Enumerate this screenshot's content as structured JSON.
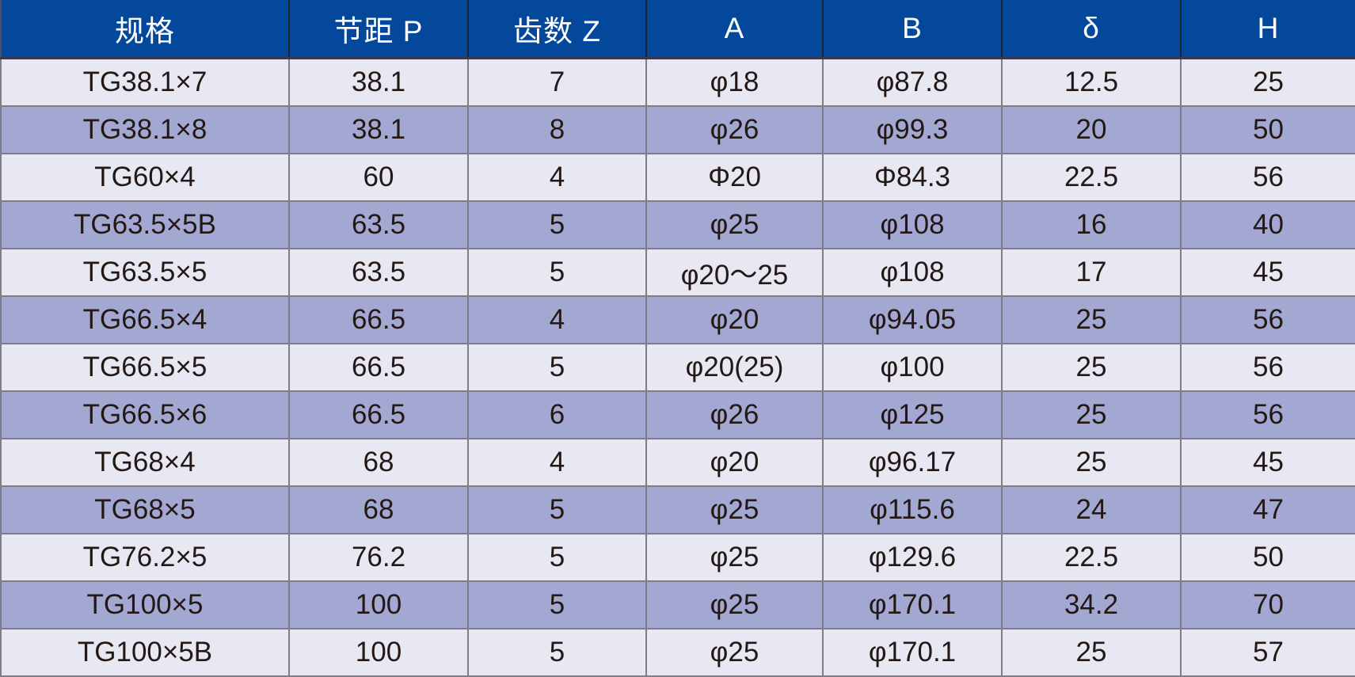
{
  "chart_data": {
    "type": "table",
    "columns": [
      "规格",
      "节距 P",
      "齿数 Z",
      "A",
      "B",
      "δ",
      "H"
    ],
    "rows": [
      [
        "TG38.1×7",
        "38.1",
        "7",
        "φ18",
        "φ87.8",
        "12.5",
        "25"
      ],
      [
        "TG38.1×8",
        "38.1",
        "8",
        "φ26",
        "φ99.3",
        "20",
        "50"
      ],
      [
        "TG60×4",
        "60",
        "4",
        "Φ20",
        "Φ84.3",
        "22.5",
        "56"
      ],
      [
        "TG63.5×5B",
        "63.5",
        "5",
        "φ25",
        "φ108",
        "16",
        "40"
      ],
      [
        "TG63.5×5",
        "63.5",
        "5",
        "φ20～25",
        "φ108",
        "17",
        "45"
      ],
      [
        "TG66.5×4",
        "66.5",
        "4",
        "φ20",
        "φ94.05",
        "25",
        "56"
      ],
      [
        "TG66.5×5",
        "66.5",
        "5",
        "φ20(25)",
        "φ100",
        "25",
        "56"
      ],
      [
        "TG66.5×6",
        "66.5",
        "6",
        "φ26",
        "φ125",
        "25",
        "56"
      ],
      [
        "TG68×4",
        "68",
        "4",
        "φ20",
        "φ96.17",
        "25",
        "45"
      ],
      [
        "TG68×5",
        "68",
        "5",
        "φ25",
        "φ115.6",
        "24",
        "47"
      ],
      [
        "TG76.2×5",
        "76.2",
        "5",
        "φ25",
        "φ129.6",
        "22.5",
        "50"
      ],
      [
        "TG100×5",
        "100",
        "5",
        "φ25",
        "φ170.1",
        "34.2",
        "70"
      ],
      [
        "TG100×5B",
        "100",
        "5",
        "φ25",
        "φ170.1",
        "25",
        "57"
      ]
    ],
    "layout": {
      "header_position": "top",
      "zebra_striping": true,
      "grid": true,
      "first_row_stripe": "light"
    }
  },
  "colors": {
    "header_bg": "#04489C",
    "header_text": "#FFFFFF",
    "row_light": "#E8E8F3",
    "row_dark": "#A3A8D2",
    "cell_text": "#231815",
    "grid_line": "#7D7D88",
    "header_grid_line": "#1E2330"
  }
}
